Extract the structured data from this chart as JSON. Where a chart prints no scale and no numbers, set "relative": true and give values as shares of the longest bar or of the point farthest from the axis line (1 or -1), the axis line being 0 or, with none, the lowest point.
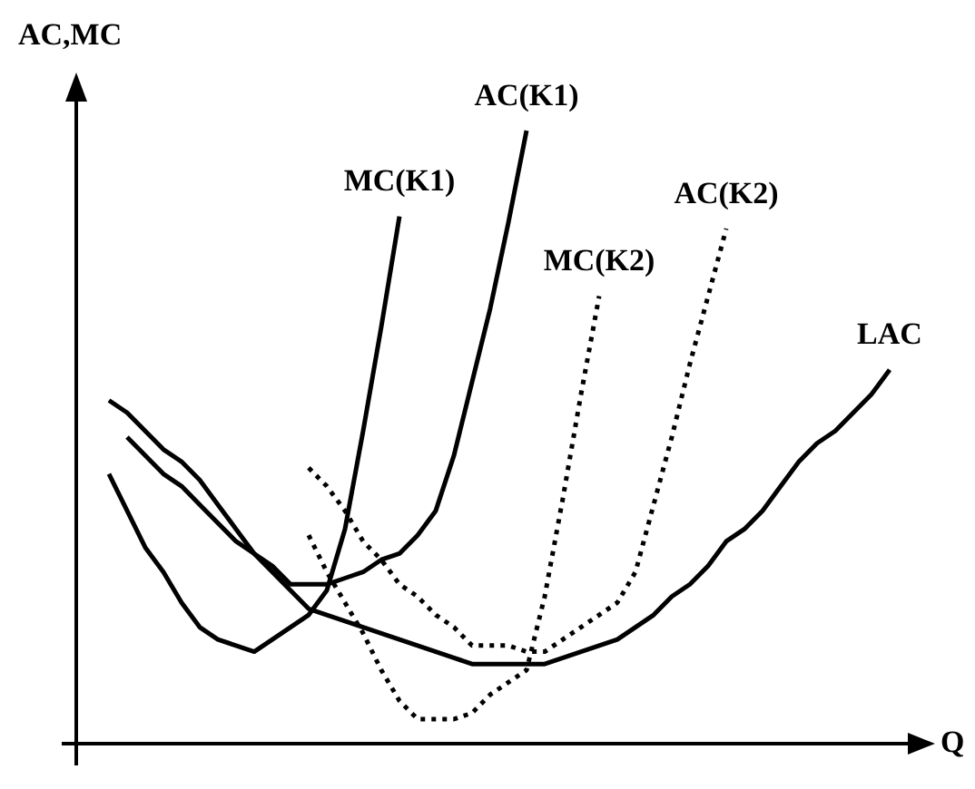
{
  "chart_data": {
    "type": "line",
    "relative": true,
    "xlabel": "Q",
    "ylabel": "AC,MC",
    "marker": "none",
    "categories": [
      null,
      null,
      null,
      null,
      null,
      null,
      null,
      null,
      null,
      null,
      null,
      null,
      null,
      null,
      null,
      null,
      null,
      null,
      null,
      null,
      null,
      null,
      null,
      null,
      null,
      null,
      null,
      null,
      null,
      null,
      null,
      null,
      null,
      null,
      null,
      null,
      null,
      null,
      null,
      null,
      null,
      null,
      null,
      null,
      null,
      null
    ],
    "series": [
      {
        "name": "MC(K1)",
        "color": "#000000",
        "line_style": "solid",
        "values": [
          null,
          0.44,
          0.38,
          0.32,
          0.28,
          0.23,
          0.19,
          0.17,
          0.16,
          0.15,
          0.17,
          0.19,
          0.21,
          0.25,
          0.35,
          0.51,
          0.68,
          0.86,
          null,
          null,
          null,
          null,
          null,
          null,
          null,
          null,
          null,
          null,
          null,
          null,
          null,
          null,
          null,
          null,
          null,
          null,
          null,
          null,
          null,
          null,
          null,
          null,
          null,
          null,
          null,
          null
        ]
      },
      {
        "name": "AC(K1)",
        "color": "#000000",
        "line_style": "solid",
        "values": [
          null,
          0.56,
          0.54,
          0.51,
          0.48,
          0.46,
          0.43,
          0.39,
          0.35,
          0.31,
          0.29,
          0.26,
          0.26,
          0.26,
          0.27,
          0.28,
          0.3,
          0.31,
          0.34,
          0.38,
          0.47,
          0.59,
          0.71,
          0.85,
          1.0,
          null,
          null,
          null,
          null,
          null,
          null,
          null,
          null,
          null,
          null,
          null,
          null,
          null,
          null,
          null,
          null,
          null,
          null,
          null,
          null,
          null
        ]
      },
      {
        "name": "MC(K2)",
        "color": "#000000",
        "line_style": "dotted",
        "values": [
          null,
          null,
          null,
          null,
          null,
          null,
          null,
          null,
          null,
          null,
          null,
          null,
          0.34,
          0.28,
          0.23,
          0.18,
          0.12,
          0.07,
          0.04,
          0.04,
          0.04,
          0.05,
          0.08,
          0.1,
          0.12,
          0.24,
          0.4,
          0.57,
          0.73,
          null,
          null,
          null,
          null,
          null,
          null,
          null,
          null,
          null,
          null,
          null,
          null,
          null,
          null,
          null,
          null,
          null
        ]
      },
      {
        "name": "AC(K2)",
        "color": "#000000",
        "line_style": "dotted",
        "values": [
          null,
          null,
          null,
          null,
          null,
          null,
          null,
          null,
          null,
          null,
          null,
          null,
          0.45,
          0.42,
          0.38,
          0.33,
          0.3,
          0.26,
          0.24,
          0.21,
          0.19,
          0.16,
          0.16,
          0.16,
          0.15,
          0.15,
          0.17,
          0.19,
          0.21,
          0.23,
          0.28,
          0.39,
          0.5,
          0.62,
          0.73,
          0.84,
          null,
          null,
          null,
          null,
          null,
          null,
          null,
          null,
          null,
          null
        ]
      },
      {
        "name": "LAC",
        "color": "#000000",
        "line_style": "solid",
        "values": [
          null,
          null,
          0.5,
          0.47,
          0.44,
          0.42,
          0.39,
          0.36,
          0.33,
          0.31,
          0.28,
          0.25,
          0.22,
          0.21,
          0.2,
          0.19,
          0.18,
          0.17,
          0.16,
          0.15,
          0.14,
          0.13,
          0.13,
          0.13,
          0.13,
          0.13,
          0.14,
          0.15,
          0.16,
          0.17,
          0.19,
          0.21,
          0.24,
          0.26,
          0.29,
          0.33,
          0.35,
          0.38,
          0.42,
          0.46,
          0.49,
          0.51,
          0.54,
          0.57,
          0.61,
          null
        ]
      }
    ]
  }
}
